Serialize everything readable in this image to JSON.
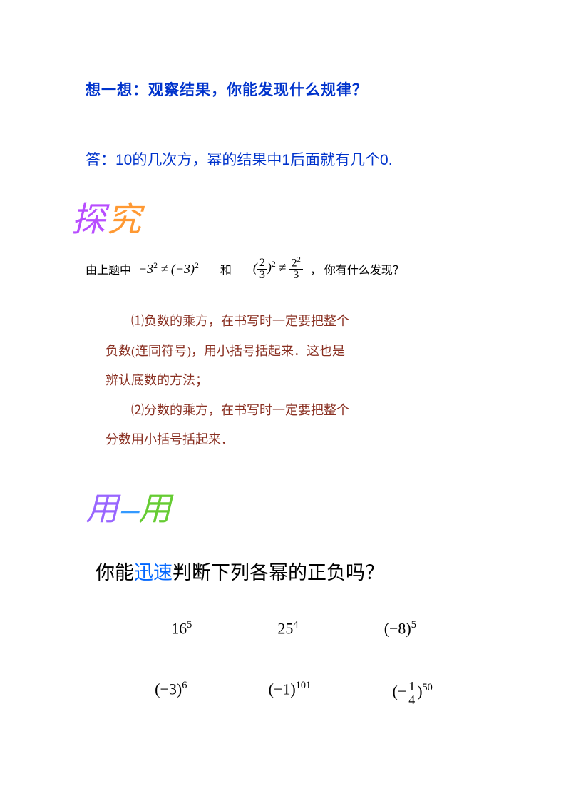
{
  "think": {
    "prefix": "想一想：",
    "text": "观察结果，你能发现什么规律？"
  },
  "answer": {
    "prefix": "答：",
    "text": "10的几次方，幂的结果中1后面就有几个0."
  },
  "explore_heading": {
    "char1": "探",
    "char2": "究",
    "color1": "#b84dff",
    "color2": "#ff9933"
  },
  "inquiry": {
    "prefix": "由上题中",
    "mid": "和",
    "suffix": "，  你有什么发现？",
    "expr1_left": "−3",
    "expr1_sup": "2",
    "expr1_right": "(−3)",
    "expr2_frac_num": "2",
    "expr2_frac_den": "3",
    "expr2_sup": "2"
  },
  "rules": {
    "line1": "　　⑴负数的乘方，在书写时一定要把整个",
    "line2": "负数(连同符号)，用小括号括起来．这也是",
    "line3": "辨认底数的方法；",
    "line4": "　　⑵分数的乘方，在书写时一定要把整个",
    "line5": "分数用小括号括起来．",
    "color": "#892f21"
  },
  "use_heading": {
    "char1": "用",
    "mid": "一",
    "char2": "用",
    "color1": "#9966ff",
    "color_mid": "#3399ff",
    "color2": "#66cc33"
  },
  "judge": {
    "pre": "你能",
    "highlight": "迅速",
    "post": "判断下列各幂的正负吗？",
    "highlight_color": "#0066ff"
  },
  "expressions": {
    "row1": [
      {
        "base": "16",
        "exp": "5",
        "wrap": false
      },
      {
        "base": "25",
        "exp": "4",
        "wrap": false
      },
      {
        "base": "−8",
        "exp": "5",
        "wrap": true
      }
    ],
    "row2": [
      {
        "base": "−3",
        "exp": "6",
        "wrap": true
      },
      {
        "base": "−1",
        "exp": "101",
        "wrap": true
      },
      {
        "frac_num": "1",
        "frac_den": "4",
        "neg": true,
        "exp": "50",
        "wrap": true
      }
    ]
  }
}
